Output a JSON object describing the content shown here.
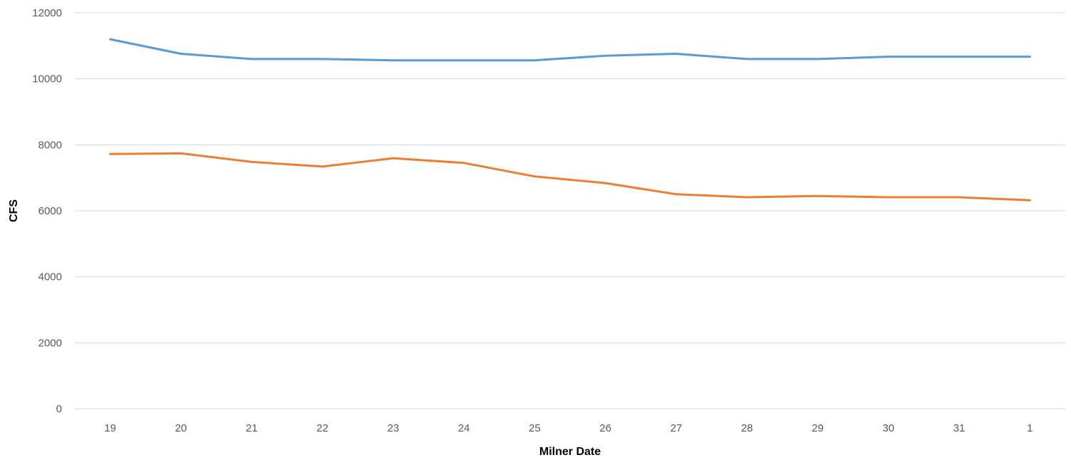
{
  "chart_data": {
    "type": "line",
    "title": "",
    "xlabel": "Milner Date",
    "ylabel": "CFS",
    "categories": [
      "19",
      "20",
      "21",
      "22",
      "23",
      "24",
      "25",
      "26",
      "27",
      "28",
      "29",
      "30",
      "31",
      "1"
    ],
    "ylim": [
      0,
      12000
    ],
    "yticks": [
      0,
      2000,
      4000,
      6000,
      8000,
      10000,
      12000
    ],
    "grid": true,
    "legend": "none",
    "series": [
      {
        "color": "#5b9bd5",
        "values": [
          11200,
          10760,
          10600,
          10600,
          10560,
          10560,
          10560,
          10700,
          10760,
          10600,
          10600,
          10670,
          10670,
          10670
        ]
      },
      {
        "color": "#ed7d31",
        "values": [
          7720,
          7740,
          7480,
          7340,
          7590,
          7450,
          7040,
          6840,
          6500,
          6410,
          6450,
          6410,
          6410,
          6320
        ]
      }
    ]
  }
}
